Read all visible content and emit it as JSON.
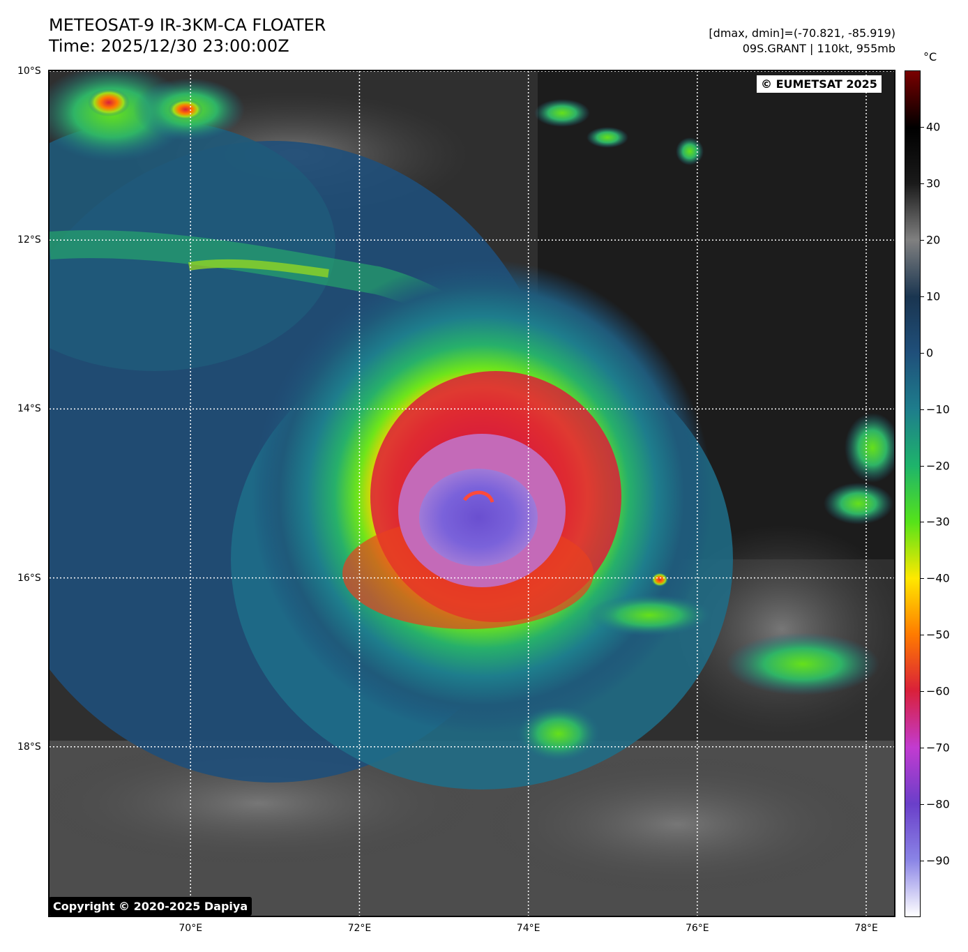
{
  "header": {
    "title_line1": "METEOSAT-9 IR-3KM-CA FLOATER",
    "title_line2": "Time: 2025/12/30 23:00:00Z",
    "info_line1": "[dmax, dmin]=(-70.821, -85.919)",
    "info_line2": "09S.GRANT | 110kt, 955mb"
  },
  "map": {
    "lat_labels": [
      "10°S",
      "12°S",
      "14°S",
      "16°S",
      "18°S"
    ],
    "lon_labels": [
      "70°E",
      "72°E",
      "74°E",
      "76°E",
      "78°E"
    ],
    "lat_values": [
      -10,
      -12,
      -14,
      -16,
      -18
    ],
    "lon_values": [
      70,
      72,
      74,
      76,
      78
    ],
    "lat_range": [
      -20,
      -10
    ],
    "lon_range": [
      68.33,
      78.33
    ],
    "gridlines": true,
    "storm": {
      "name": "GRANT",
      "center_lat": -15.3,
      "center_lon": 73.4
    },
    "eumetsat_credit": "© EUMETSAT 2025",
    "dapiya_credit": "Copyright © 2020-2025 Dapiya"
  },
  "colorbar": {
    "unit": "°C",
    "ticks": [
      "40",
      "30",
      "20",
      "10",
      "0",
      "−10",
      "−20",
      "−30",
      "−40",
      "−50",
      "−60",
      "−70",
      "−80",
      "−90"
    ],
    "tick_values": [
      40,
      30,
      20,
      10,
      0,
      -10,
      -20,
      -30,
      -40,
      -50,
      -60,
      -70,
      -80,
      -90
    ],
    "range": [
      -100,
      50
    ],
    "colors": [
      "#ffffff",
      "#8a84e6",
      "#6a3fc9",
      "#c23bd0",
      "#d9203a",
      "#ff7a00",
      "#ffe800",
      "#55e31a",
      "#1eb46b",
      "#1e7d8c",
      "#1f4f7a",
      "#1a3550",
      "#808080",
      "#1a1a1a",
      "#000000",
      "#7a0000"
    ]
  }
}
